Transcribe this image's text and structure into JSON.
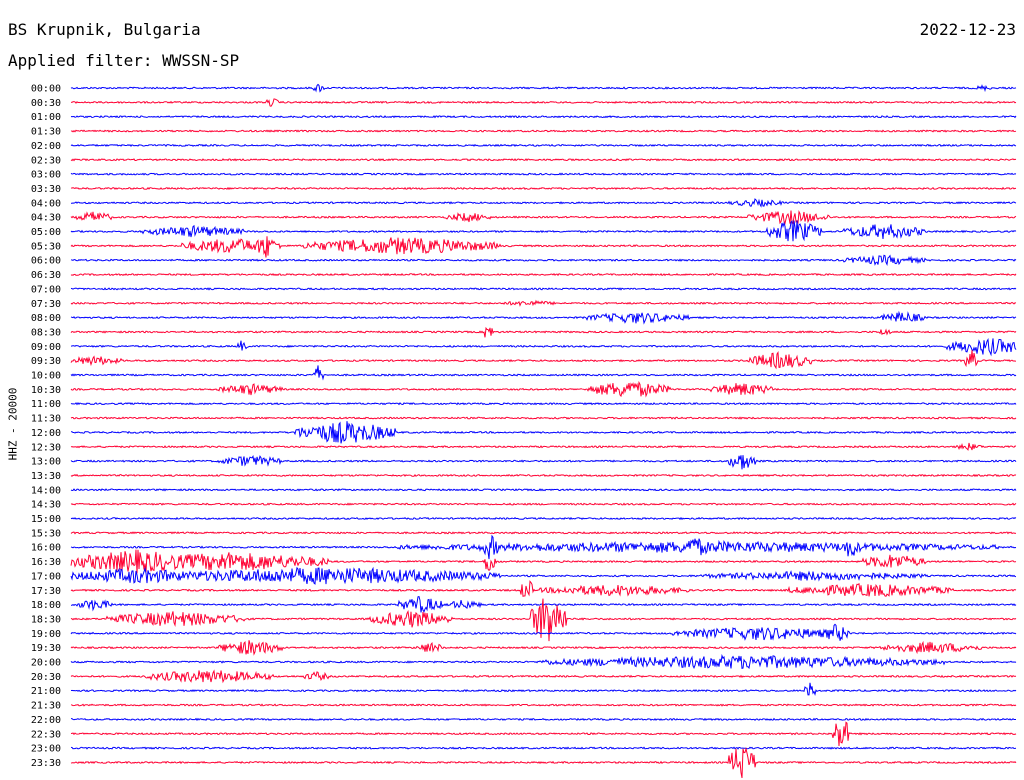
{
  "header": {
    "station": "BS Krupnik, Bulgaria",
    "date": "2022-12-23",
    "filter": "Applied filter: WWSSN-SP"
  },
  "chart_data": {
    "type": "line",
    "title": "BS Krupnik, Bulgaria",
    "ylabel": "HHZ - 20000",
    "colors": [
      "#0000ff",
      "#ff0033"
    ],
    "rows": [
      "00:00",
      "00:30",
      "01:00",
      "01:30",
      "02:00",
      "02:30",
      "03:00",
      "03:30",
      "04:00",
      "04:30",
      "05:00",
      "05:30",
      "06:00",
      "06:30",
      "07:00",
      "07:30",
      "08:00",
      "08:30",
      "09:00",
      "09:30",
      "10:00",
      "10:30",
      "11:00",
      "11:30",
      "12:00",
      "12:30",
      "13:00",
      "13:30",
      "14:00",
      "14:30",
      "15:00",
      "15:30",
      "16:00",
      "16:30",
      "17:00",
      "17:30",
      "18:00",
      "18:30",
      "19:00",
      "19:30",
      "20:00",
      "20:30",
      "21:00",
      "21:30",
      "22:00",
      "22:30",
      "23:00",
      "23:30"
    ],
    "row_minutes": 30,
    "events": [
      {
        "row": "00:00",
        "at": 0.26,
        "amp": 5,
        "dur": 0.004
      },
      {
        "row": "00:00",
        "at": 0.96,
        "amp": 3,
        "dur": 0.01
      },
      {
        "row": "00:30",
        "at": 0.21,
        "amp": 5,
        "dur": 0.006
      },
      {
        "row": "04:00",
        "at": 0.7,
        "amp": 4,
        "dur": 0.05
      },
      {
        "row": "04:30",
        "at": 0.01,
        "amp": 6,
        "dur": 0.03
      },
      {
        "row": "04:30",
        "at": 0.4,
        "amp": 5,
        "dur": 0.04
      },
      {
        "row": "04:30",
        "at": 0.72,
        "amp": 7,
        "dur": 0.08
      },
      {
        "row": "05:00",
        "at": 0.08,
        "amp": 6,
        "dur": 0.1
      },
      {
        "row": "05:00",
        "at": 0.74,
        "amp": 12,
        "dur": 0.05
      },
      {
        "row": "05:00",
        "at": 0.82,
        "amp": 8,
        "dur": 0.08
      },
      {
        "row": "05:30",
        "at": 0.12,
        "amp": 8,
        "dur": 0.1
      },
      {
        "row": "05:30",
        "at": 0.2,
        "amp": 14,
        "dur": 0.012
      },
      {
        "row": "05:30",
        "at": 0.25,
        "amp": 9,
        "dur": 0.2
      },
      {
        "row": "06:00",
        "at": 0.82,
        "amp": 5,
        "dur": 0.08
      },
      {
        "row": "07:30",
        "at": 0.46,
        "amp": 3,
        "dur": 0.05
      },
      {
        "row": "08:00",
        "at": 0.55,
        "amp": 6,
        "dur": 0.1
      },
      {
        "row": "08:00",
        "at": 0.86,
        "amp": 6,
        "dur": 0.04
      },
      {
        "row": "08:30",
        "at": 0.44,
        "amp": 10,
        "dur": 0.003
      },
      {
        "row": "08:30",
        "at": 0.86,
        "amp": 6,
        "dur": 0.003
      },
      {
        "row": "09:00",
        "at": 0.18,
        "amp": 7,
        "dur": 0.003
      },
      {
        "row": "09:00",
        "at": 0.93,
        "amp": 9,
        "dur": 0.08
      },
      {
        "row": "09:30",
        "at": 0.0,
        "amp": 5,
        "dur": 0.05
      },
      {
        "row": "09:30",
        "at": 0.72,
        "amp": 9,
        "dur": 0.06
      },
      {
        "row": "09:30",
        "at": 0.95,
        "amp": 12,
        "dur": 0.005
      },
      {
        "row": "10:00",
        "at": 0.26,
        "amp": 10,
        "dur": 0.003
      },
      {
        "row": "10:30",
        "at": 0.16,
        "amp": 6,
        "dur": 0.06
      },
      {
        "row": "10:30",
        "at": 0.55,
        "amp": 9,
        "dur": 0.08
      },
      {
        "row": "10:30",
        "at": 0.68,
        "amp": 7,
        "dur": 0.06
      },
      {
        "row": "12:00",
        "at": 0.24,
        "amp": 12,
        "dur": 0.1
      },
      {
        "row": "12:30",
        "at": 0.94,
        "amp": 4,
        "dur": 0.02
      },
      {
        "row": "13:00",
        "at": 0.16,
        "amp": 6,
        "dur": 0.06
      },
      {
        "row": "13:00",
        "at": 0.7,
        "amp": 10,
        "dur": 0.02
      },
      {
        "row": "16:00",
        "at": 0.35,
        "amp": 6,
        "dur": 0.63
      },
      {
        "row": "16:00",
        "at": 0.44,
        "amp": 14,
        "dur": 0.008
      },
      {
        "row": "16:00",
        "at": 0.65,
        "amp": 12,
        "dur": 0.02
      },
      {
        "row": "16:00",
        "at": 0.82,
        "amp": 12,
        "dur": 0.01
      },
      {
        "row": "16:30",
        "at": 0.0,
        "amp": 12,
        "dur": 0.14
      },
      {
        "row": "16:30",
        "at": 0.07,
        "amp": 10,
        "dur": 0.2
      },
      {
        "row": "16:30",
        "at": 0.44,
        "amp": 14,
        "dur": 0.006
      },
      {
        "row": "16:30",
        "at": 0.84,
        "amp": 8,
        "dur": 0.06
      },
      {
        "row": "17:00",
        "at": 0.0,
        "amp": 8,
        "dur": 0.14
      },
      {
        "row": "17:00",
        "at": 0.09,
        "amp": 9,
        "dur": 0.36
      },
      {
        "row": "17:00",
        "at": 0.67,
        "amp": 5,
        "dur": 0.23
      },
      {
        "row": "17:30",
        "at": 0.48,
        "amp": 14,
        "dur": 0.005
      },
      {
        "row": "17:30",
        "at": 0.5,
        "amp": 6,
        "dur": 0.15
      },
      {
        "row": "17:30",
        "at": 0.76,
        "amp": 7,
        "dur": 0.17
      },
      {
        "row": "18:00",
        "at": 0.01,
        "amp": 6,
        "dur": 0.03
      },
      {
        "row": "18:00",
        "at": 0.35,
        "amp": 9,
        "dur": 0.04
      },
      {
        "row": "18:00",
        "at": 0.4,
        "amp": 5,
        "dur": 0.03
      },
      {
        "row": "18:30",
        "at": 0.04,
        "amp": 8,
        "dur": 0.14
      },
      {
        "row": "18:30",
        "at": 0.32,
        "amp": 9,
        "dur": 0.08
      },
      {
        "row": "18:30",
        "at": 0.49,
        "amp": 28,
        "dur": 0.03
      },
      {
        "row": "19:00",
        "at": 0.64,
        "amp": 7,
        "dur": 0.18
      },
      {
        "row": "19:00",
        "at": 0.8,
        "amp": 10,
        "dur": 0.02
      },
      {
        "row": "19:30",
        "at": 0.16,
        "amp": 8,
        "dur": 0.06
      },
      {
        "row": "19:30",
        "at": 0.37,
        "amp": 6,
        "dur": 0.02
      },
      {
        "row": "19:30",
        "at": 0.86,
        "amp": 6,
        "dur": 0.1
      },
      {
        "row": "20:00",
        "at": 0.5,
        "amp": 7,
        "dur": 0.42
      },
      {
        "row": "20:30",
        "at": 0.08,
        "amp": 7,
        "dur": 0.13
      },
      {
        "row": "20:30",
        "at": 0.25,
        "amp": 5,
        "dur": 0.02
      },
      {
        "row": "21:00",
        "at": 0.78,
        "amp": 9,
        "dur": 0.004
      },
      {
        "row": "22:30",
        "at": 0.81,
        "amp": 20,
        "dur": 0.01
      },
      {
        "row": "23:30",
        "at": 0.7,
        "amp": 20,
        "dur": 0.02
      }
    ]
  }
}
